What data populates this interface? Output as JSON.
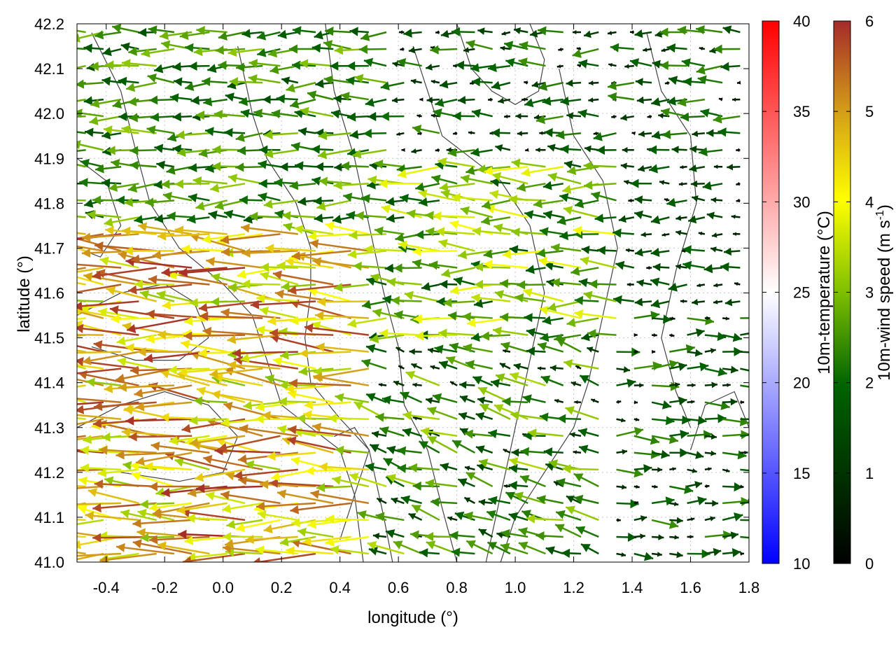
{
  "chart_data": {
    "type": "vector-field",
    "xlabel": "longitude (°)",
    "ylabel": "latitude (°)",
    "xlim": [
      -0.5,
      1.8
    ],
    "ylim": [
      41.0,
      42.2
    ],
    "x_ticks": [
      "-0.4",
      "-0.2",
      "0.0",
      "0.2",
      "0.4",
      "0.6",
      "0.8",
      "1.0",
      "1.2",
      "1.4",
      "1.6",
      "1.8"
    ],
    "y_ticks": [
      "41.0",
      "41.1",
      "41.2",
      "41.3",
      "41.4",
      "41.5",
      "41.6",
      "41.7",
      "41.8",
      "41.9",
      "42.0",
      "42.1",
      "42.2"
    ],
    "grid": true,
    "temperature_colorbar": {
      "label": "10m-temperature (°C)",
      "range": [
        10,
        40
      ],
      "ticks": [
        "10",
        "15",
        "20",
        "25",
        "30",
        "35",
        "40"
      ],
      "colors": [
        "#0000ff",
        "#ffffff",
        "#ff0000"
      ]
    },
    "wind_colorbar": {
      "label_main": "10m-wind speed (m s",
      "label_sup": "-1",
      "label_end": ")",
      "range": [
        0,
        6
      ],
      "ticks": [
        "0",
        "1",
        "2",
        "3",
        "4",
        "5",
        "6"
      ],
      "colors": [
        "#000000",
        "#006400",
        "#7fbf00",
        "#ffff00",
        "#d4a017",
        "#a52a2a"
      ]
    },
    "wind_regions": [
      {
        "lon": [
          -0.5,
          0.5
        ],
        "lat": [
          41.0,
          41.75
        ],
        "u": -3.8,
        "v": 0.15,
        "speed": [
          3.0,
          6.0
        ]
      },
      {
        "lon": [
          -0.5,
          0.6
        ],
        "lat": [
          41.75,
          42.2
        ],
        "u": -2.4,
        "v": 0.0,
        "speed": [
          1.5,
          3.2
        ]
      },
      {
        "lon": [
          0.5,
          1.4
        ],
        "lat": [
          41.5,
          41.9
        ],
        "u": -2.8,
        "v": 0.05,
        "speed": [
          1.5,
          4.0
        ]
      },
      {
        "lon": [
          0.5,
          1.3
        ],
        "lat": [
          41.0,
          41.5
        ],
        "u": -1.5,
        "v": 0.4,
        "speed": [
          0.5,
          3.5
        ]
      },
      {
        "lon": [
          1.3,
          1.8
        ],
        "lat": [
          41.0,
          41.55
        ],
        "u": 1.4,
        "v": 0.0,
        "speed": [
          0.3,
          2.5
        ]
      },
      {
        "lon": [
          0.6,
          1.8
        ],
        "lat": [
          41.9,
          42.2
        ],
        "u": -0.8,
        "v": 0.0,
        "speed": [
          0.2,
          2.5
        ]
      },
      {
        "lon": [
          1.4,
          1.8
        ],
        "lat": [
          41.55,
          41.9
        ],
        "u": -1.0,
        "v": 0.0,
        "speed": [
          0.3,
          2.0
        ]
      }
    ],
    "contours": [
      [
        [
          -0.45,
          42.18
        ],
        [
          -0.35,
          42.05
        ],
        [
          -0.3,
          41.92
        ],
        [
          -0.25,
          41.8
        ],
        [
          -0.15,
          41.7
        ],
        [
          0.0,
          41.62
        ],
        [
          0.1,
          41.55
        ],
        [
          0.15,
          41.45
        ],
        [
          0.2,
          41.35
        ],
        [
          0.3,
          41.3
        ],
        [
          0.4,
          41.25
        ],
        [
          0.45,
          41.15
        ],
        [
          0.48,
          41.0
        ]
      ],
      [
        [
          0.05,
          42.15
        ],
        [
          0.1,
          42.0
        ],
        [
          0.15,
          41.9
        ],
        [
          0.25,
          41.8
        ],
        [
          0.3,
          41.7
        ],
        [
          0.3,
          41.6
        ],
        [
          0.28,
          41.5
        ],
        [
          0.3,
          41.4
        ],
        [
          0.4,
          41.32
        ],
        [
          0.5,
          41.25
        ],
        [
          0.55,
          41.1
        ],
        [
          0.58,
          41.0
        ]
      ],
      [
        [
          0.35,
          42.2
        ],
        [
          0.38,
          42.05
        ],
        [
          0.45,
          41.9
        ],
        [
          0.5,
          41.75
        ],
        [
          0.55,
          41.6
        ],
        [
          0.6,
          41.48
        ],
        [
          0.62,
          41.35
        ],
        [
          0.7,
          41.25
        ],
        [
          0.75,
          41.12
        ],
        [
          0.8,
          41.0
        ]
      ],
      [
        [
          0.65,
          42.15
        ],
        [
          0.7,
          42.05
        ],
        [
          0.75,
          41.95
        ],
        [
          0.85,
          41.9
        ],
        [
          0.95,
          41.85
        ],
        [
          1.05,
          41.75
        ],
        [
          1.1,
          41.6
        ],
        [
          1.05,
          41.45
        ],
        [
          1.0,
          41.3
        ],
        [
          0.95,
          41.15
        ],
        [
          0.9,
          41.0
        ]
      ],
      [
        [
          1.15,
          42.1
        ],
        [
          1.2,
          41.95
        ],
        [
          1.3,
          41.85
        ],
        [
          1.35,
          41.7
        ],
        [
          1.3,
          41.55
        ],
        [
          1.25,
          41.4
        ],
        [
          1.2,
          41.3
        ],
        [
          1.1,
          41.2
        ],
        [
          1.0,
          41.1
        ],
        [
          0.95,
          41.0
        ]
      ],
      [
        [
          1.45,
          42.18
        ],
        [
          1.5,
          42.05
        ],
        [
          1.6,
          41.95
        ],
        [
          1.62,
          41.8
        ],
        [
          1.55,
          41.65
        ],
        [
          1.5,
          41.5
        ],
        [
          1.55,
          41.38
        ],
        [
          1.6,
          41.3
        ]
      ],
      [
        [
          -0.5,
          41.55
        ],
        [
          -0.35,
          41.6
        ],
        [
          -0.2,
          41.62
        ],
        [
          -0.1,
          41.58
        ],
        [
          -0.05,
          41.5
        ],
        [
          -0.15,
          41.45
        ],
        [
          -0.3,
          41.45
        ],
        [
          -0.45,
          41.48
        ]
      ],
      [
        [
          -0.5,
          41.3
        ],
        [
          -0.35,
          41.35
        ],
        [
          -0.2,
          41.38
        ],
        [
          -0.05,
          41.35
        ],
        [
          0.05,
          41.28
        ],
        [
          0.0,
          41.2
        ],
        [
          -0.15,
          41.18
        ],
        [
          -0.35,
          41.2
        ]
      ],
      [
        [
          0.8,
          42.2
        ],
        [
          0.85,
          42.1
        ],
        [
          0.92,
          42.05
        ],
        [
          1.0,
          42.02
        ],
        [
          1.08,
          42.05
        ],
        [
          1.1,
          42.12
        ],
        [
          1.05,
          42.2
        ]
      ],
      [
        [
          1.6,
          41.25
        ],
        [
          1.65,
          41.35
        ],
        [
          1.75,
          41.38
        ],
        [
          1.8,
          41.3
        ]
      ],
      [
        [
          0.4,
          41.05
        ],
        [
          0.45,
          41.15
        ],
        [
          0.5,
          41.25
        ],
        [
          0.45,
          41.3
        ],
        [
          0.38,
          41.28
        ]
      ],
      [
        [
          -0.5,
          41.9
        ],
        [
          -0.4,
          41.85
        ],
        [
          -0.35,
          41.75
        ],
        [
          -0.42,
          41.68
        ],
        [
          -0.5,
          41.7
        ]
      ]
    ]
  }
}
